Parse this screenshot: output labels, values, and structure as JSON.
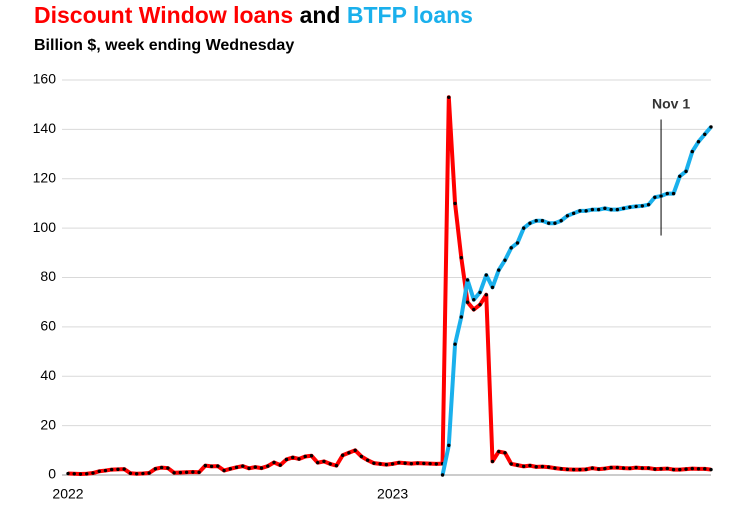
{
  "chart_data": {
    "type": "line",
    "title_connector": "and",
    "subtitle": "Billion $, week ending Wednesday",
    "annotation": "Nov 1",
    "categories": [
      "2022",
      null,
      null,
      null,
      null,
      null,
      null,
      null,
      null,
      null,
      null,
      null,
      null,
      null,
      null,
      null,
      null,
      null,
      null,
      null,
      null,
      null,
      null,
      null,
      null,
      null,
      null,
      null,
      null,
      null,
      null,
      null,
      null,
      null,
      null,
      null,
      null,
      null,
      null,
      null,
      null,
      null,
      null,
      null,
      null,
      null,
      null,
      null,
      null,
      null,
      null,
      null,
      "2023",
      null,
      null,
      null,
      null,
      null,
      null,
      null,
      null,
      null,
      null,
      null,
      null,
      null,
      null,
      null,
      null,
      null,
      null,
      null,
      null,
      null,
      null,
      null,
      null,
      null,
      null,
      null,
      null,
      null,
      null,
      null,
      null,
      null,
      null,
      null,
      null,
      null,
      null,
      null,
      null,
      null,
      null,
      null,
      null,
      null,
      null,
      null,
      null,
      null,
      null,
      null
    ],
    "series": [
      {
        "name": "Discount Window loans",
        "color": "#ff0000",
        "values": [
          0.6,
          0.5,
          0.4,
          0.5,
          0.8,
          1.5,
          1.8,
          2.2,
          2.3,
          2.4,
          0.7,
          0.5,
          0.6,
          0.8,
          2.5,
          3,
          2.8,
          0.9,
          1.0,
          1.1,
          1.2,
          1.1,
          3.8,
          3.5,
          3.6,
          1.8,
          2.5,
          3.1,
          3.6,
          2.7,
          3.2,
          2.8,
          3.6,
          5.1,
          4.0,
          6.3,
          7.1,
          6.5,
          7.5,
          7.8,
          5.0,
          5.5,
          4.5,
          3.8,
          8.0,
          9.0,
          10.0,
          7.5,
          6.0,
          4.8,
          4.5,
          4.2,
          4.5,
          5.0,
          4.8,
          4.6,
          4.8,
          4.7,
          4.6,
          4.5,
          4.6,
          153,
          110,
          88,
          70,
          67,
          69,
          73,
          5.5,
          9.5,
          9,
          4.5,
          4,
          3.5,
          3.8,
          3.3,
          3.4,
          3.2,
          2.8,
          2.5,
          2.3,
          2.2,
          2.2,
          2.3,
          2.8,
          2.4,
          2.6,
          3,
          3,
          2.8,
          2.7,
          3,
          2.8,
          2.8,
          2.4,
          2.5,
          2.6,
          2.2,
          2.2,
          2.4,
          2.6,
          2.5,
          2.5,
          2.2
        ]
      },
      {
        "name": "BTFP loans",
        "color": "#1ab0ec",
        "values": [
          null,
          null,
          null,
          null,
          null,
          null,
          null,
          null,
          null,
          null,
          null,
          null,
          null,
          null,
          null,
          null,
          null,
          null,
          null,
          null,
          null,
          null,
          null,
          null,
          null,
          null,
          null,
          null,
          null,
          null,
          null,
          null,
          null,
          null,
          null,
          null,
          null,
          null,
          null,
          null,
          null,
          null,
          null,
          null,
          null,
          null,
          null,
          null,
          null,
          null,
          null,
          null,
          null,
          null,
          null,
          null,
          null,
          null,
          null,
          null,
          0,
          12,
          53,
          64,
          79,
          71,
          74,
          81,
          76,
          83,
          87,
          92,
          94,
          100,
          102,
          103,
          103,
          102,
          102,
          103,
          105,
          106,
          107,
          107,
          107.5,
          107.5,
          108,
          107.5,
          107.5,
          108,
          108.5,
          108.8,
          109,
          109.5,
          112.5,
          113,
          114,
          114,
          121,
          123,
          131,
          135,
          138,
          141
        ]
      }
    ],
    "ylim": [
      0,
      160
    ],
    "yticks": [
      0,
      20,
      40,
      60,
      80,
      100,
      120,
      140,
      160
    ],
    "grid": true
  }
}
